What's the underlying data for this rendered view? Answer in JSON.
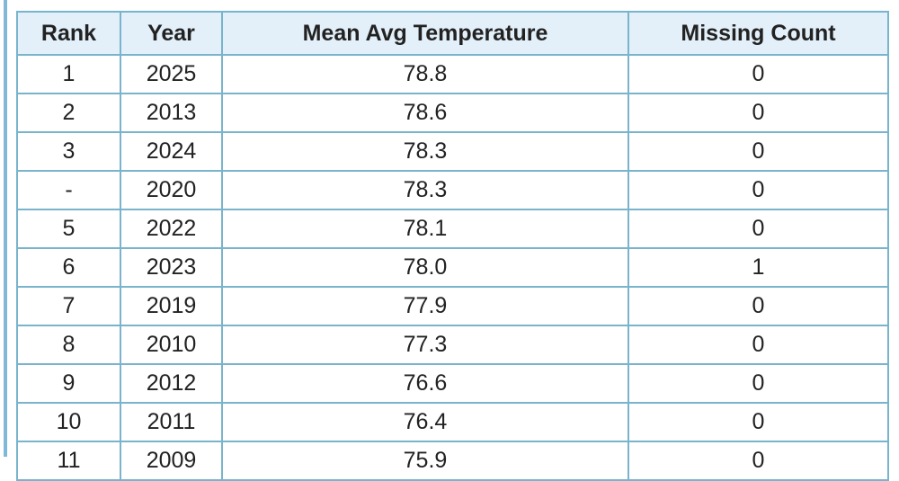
{
  "table": {
    "columns": [
      "Rank",
      "Year",
      "Mean Avg Temperature",
      "Missing Count"
    ],
    "rows": [
      [
        "1",
        "2025",
        "78.8",
        "0"
      ],
      [
        "2",
        "2013",
        "78.6",
        "0"
      ],
      [
        "3",
        "2024",
        "78.3",
        "0"
      ],
      [
        "-",
        "2020",
        "78.3",
        "0"
      ],
      [
        "5",
        "2022",
        "78.1",
        "0"
      ],
      [
        "6",
        "2023",
        "78.0",
        "1"
      ],
      [
        "7",
        "2019",
        "77.9",
        "0"
      ],
      [
        "8",
        "2010",
        "77.3",
        "0"
      ],
      [
        "9",
        "2012",
        "76.6",
        "0"
      ],
      [
        "10",
        "2011",
        "76.4",
        "0"
      ],
      [
        "11",
        "2009",
        "75.9",
        "0"
      ]
    ]
  }
}
